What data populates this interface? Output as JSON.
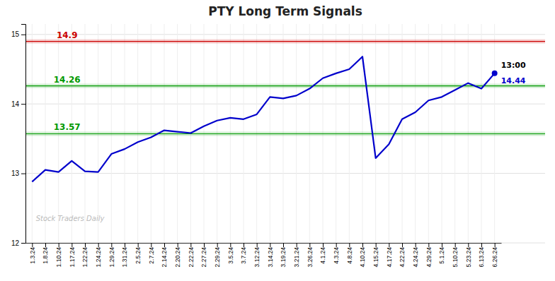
{
  "chart_data": {
    "type": "line",
    "title": "PTY Long Term Signals",
    "categories": [
      "1.3.24",
      "1.8.24",
      "1.10.24",
      "1.17.24",
      "1.22.24",
      "1.24.24",
      "1.29.24",
      "1.31.24",
      "2.5.24",
      "2.7.24",
      "2.14.24",
      "2.20.24",
      "2.22.24",
      "2.27.24",
      "2.29.24",
      "3.5.24",
      "3.7.24",
      "3.12.24",
      "3.14.24",
      "3.19.24",
      "3.21.24",
      "3.26.24",
      "4.1.24",
      "4.3.24",
      "4.8.24",
      "4.10.24",
      "4.15.24",
      "4.17.24",
      "4.22.24",
      "4.24.24",
      "4.29.24",
      "5.1.24",
      "5.10.24",
      "5.23.24",
      "6.13.24",
      "6.26.24"
    ],
    "values": [
      12.88,
      13.05,
      13.02,
      13.18,
      13.03,
      13.02,
      13.28,
      13.35,
      13.45,
      13.52,
      13.62,
      13.6,
      13.58,
      13.68,
      13.76,
      13.8,
      13.78,
      13.85,
      14.1,
      14.08,
      14.12,
      14.22,
      14.37,
      14.44,
      14.5,
      14.68,
      13.22,
      13.42,
      13.78,
      13.88,
      14.05,
      14.1,
      14.2,
      14.3,
      14.22,
      14.44
    ],
    "color": "#0000cc",
    "ylim": [
      12,
      15.15
    ],
    "yticks": [
      12,
      13,
      14,
      15
    ],
    "grid": true,
    "reference_lines": [
      {
        "value": 14.9,
        "label": "14.9",
        "color": "#cc0000"
      },
      {
        "value": 14.26,
        "label": "14.26",
        "color": "#009900"
      },
      {
        "value": 13.57,
        "label": "13.57",
        "color": "#009900"
      }
    ],
    "annotations": [
      {
        "text": "13:00",
        "color": "#000000"
      },
      {
        "text": "14.44",
        "color": "#0000cc"
      }
    ],
    "watermark": "Stock Traders Daily"
  }
}
